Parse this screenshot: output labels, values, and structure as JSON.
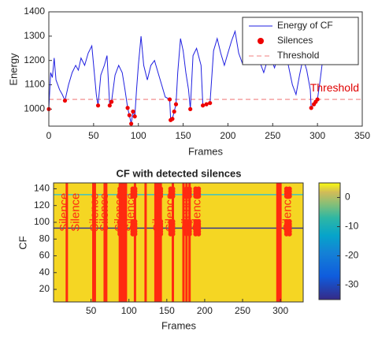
{
  "chart_data": [
    {
      "type": "line",
      "xlabel": "Frames",
      "ylabel": "Energy",
      "xlim": [
        0,
        350
      ],
      "xticks": [
        0,
        50,
        100,
        150,
        200,
        250,
        300,
        350
      ],
      "ylim": [
        930,
        1400
      ],
      "yticks": [
        1000,
        1100,
        1200,
        1300,
        1400
      ],
      "legend": "upper right",
      "annotation": "Threshold",
      "series": [
        {
          "name": "Energy of CF",
          "color": "#1f1fe0",
          "x": [
            0,
            2,
            4,
            6,
            8,
            10,
            12,
            15,
            18,
            22,
            26,
            30,
            33,
            36,
            40,
            44,
            48,
            50,
            53,
            55,
            58,
            62,
            65,
            68,
            70,
            74,
            78,
            82,
            85,
            88,
            90,
            92,
            94,
            96,
            98,
            100,
            103,
            106,
            110,
            114,
            118,
            122,
            126,
            130,
            135,
            136,
            138,
            140,
            142,
            144,
            147,
            150,
            153,
            156,
            158,
            161,
            165,
            170,
            172,
            176,
            180,
            184,
            188,
            192,
            196,
            200,
            204,
            208,
            212,
            216,
            220,
            224,
            228,
            232,
            236,
            240,
            244,
            248,
            252,
            256,
            260,
            264,
            268,
            272,
            276,
            280,
            284,
            288,
            292,
            293,
            296,
            298,
            300,
            303,
            306,
            310,
            314,
            318,
            322,
            326,
            330
          ],
          "values": [
            1000,
            1150,
            1130,
            1210,
            1120,
            1100,
            1080,
            1060,
            1035,
            1100,
            1150,
            1180,
            1160,
            1210,
            1180,
            1230,
            1260,
            1180,
            1060,
            1015,
            1140,
            1180,
            1220,
            1015,
            1030,
            1140,
            1180,
            1150,
            1080,
            1005,
            975,
            940,
            990,
            970,
            1080,
            1180,
            1300,
            1180,
            1120,
            1180,
            1200,
            1150,
            1100,
            1050,
            1040,
            955,
            960,
            990,
            1020,
            1150,
            1290,
            1240,
            1150,
            1080,
            1000,
            1220,
            1250,
            1180,
            1015,
            1020,
            1025,
            1240,
            1290,
            1230,
            1180,
            1230,
            1280,
            1320,
            1230,
            1190,
            1240,
            1250,
            1200,
            1260,
            1190,
            1150,
            1200,
            1210,
            1170,
            1220,
            1280,
            1240,
            1170,
            1100,
            1060,
            1140,
            1210,
            1160,
            1080,
            1005,
            1020,
            1030,
            1040,
            1120,
            1210,
            1240,
            1200,
            1260,
            1300,
            1250,
            1280
          ]
        },
        {
          "name": "Silences",
          "color": "#ee0000",
          "x": [
            0,
            18,
            55,
            68,
            70,
            88,
            90,
            92,
            94,
            96,
            135,
            136,
            138,
            140,
            142,
            158,
            172,
            176,
            180,
            293,
            296,
            298,
            300
          ],
          "values": [
            1000,
            1035,
            1015,
            1015,
            1030,
            1005,
            975,
            940,
            990,
            970,
            1040,
            955,
            960,
            990,
            1020,
            1000,
            1015,
            1020,
            1025,
            1005,
            1020,
            1030,
            1040
          ]
        },
        {
          "name": "Threshold",
          "color": "#f08080",
          "y": 1040
        }
      ]
    },
    {
      "type": "heatmap",
      "title": "CF with detected silences",
      "xlabel": "Frames",
      "ylabel": "CF",
      "xlim": [
        0.5,
        330
      ],
      "xticks": [
        50,
        100,
        150,
        200,
        250,
        300
      ],
      "ylim": [
        5,
        147
      ],
      "yticks": [
        20,
        40,
        60,
        80,
        100,
        120,
        140
      ],
      "background_color": "#f5d623",
      "line_color": "#ff2a10",
      "silence_frames": [
        18,
        53,
        55,
        68,
        70,
        88,
        90,
        92,
        94,
        96,
        108,
        122,
        135,
        136,
        138,
        140,
        142,
        158,
        172,
        176,
        180,
        296,
        298,
        300
      ],
      "hlines": [
        {
          "y": 133,
          "color": "#3ec1c4"
        },
        {
          "y": 93,
          "color": "#3a3a8a"
        }
      ],
      "marker_frames": [
        88,
        92,
        105,
        108,
        138,
        142,
        155,
        158,
        176,
        180,
        188,
        192,
        308,
        312
      ],
      "annotations": [
        {
          "x": 15,
          "text": "Silence"
        },
        {
          "x": 30,
          "text": "Silence"
        },
        {
          "x": 55,
          "text": "Silence"
        },
        {
          "x": 68,
          "text": "Silence"
        },
        {
          "x": 88,
          "text": "Silence"
        },
        {
          "x": 103,
          "text": "Silence"
        },
        {
          "x": 138,
          "text": "Silence"
        },
        {
          "x": 155,
          "text": "Silence"
        },
        {
          "x": 176,
          "text": "Silence"
        },
        {
          "x": 190,
          "text": "Silence"
        },
        {
          "x": 310,
          "text": "Silence"
        }
      ],
      "colorbar": {
        "clim": [
          -35,
          5
        ],
        "ticks": [
          0,
          -10,
          -20,
          -30
        ]
      }
    }
  ]
}
